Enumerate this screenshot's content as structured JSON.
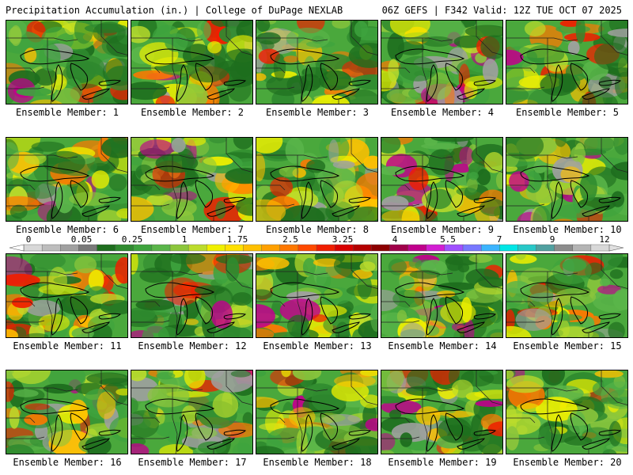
{
  "header": {
    "title_left": "Precipitation Accumulation (in.) | College of DuPage NEXLAB",
    "title_right": "06Z GEFS | F342 Valid: 12Z TUE OCT 07 2025"
  },
  "panels": [
    {
      "label": "Ensemble Member: 1"
    },
    {
      "label": "Ensemble Member: 2"
    },
    {
      "label": "Ensemble Member: 3"
    },
    {
      "label": "Ensemble Member: 4"
    },
    {
      "label": "Ensemble Member: 5"
    },
    {
      "label": "Ensemble Member: 6"
    },
    {
      "label": "Ensemble Member: 7"
    },
    {
      "label": "Ensemble Member: 8"
    },
    {
      "label": "Ensemble Member: 9"
    },
    {
      "label": "Ensemble Member: 10"
    },
    {
      "label": "Ensemble Member: 11"
    },
    {
      "label": "Ensemble Member: 12"
    },
    {
      "label": "Ensemble Member: 13"
    },
    {
      "label": "Ensemble Member: 14"
    },
    {
      "label": "Ensemble Member: 15"
    },
    {
      "label": "Ensemble Member: 16"
    },
    {
      "label": "Ensemble Member: 17"
    },
    {
      "label": "Ensemble Member: 18"
    },
    {
      "label": "Ensemble Member: 19"
    },
    {
      "label": "Ensemble Member: 20"
    }
  ],
  "colorbar": {
    "labels": [
      "0",
      "0.05",
      "0.25",
      "1",
      "1.75",
      "2.5",
      "3.25",
      "4",
      "5.5",
      "7",
      "9",
      "12"
    ],
    "colors": [
      "#d8d8d8",
      "#bdbdbd",
      "#a0a0a0",
      "#7a7a7a",
      "#1e6e1e",
      "#2f8a2f",
      "#3ea33e",
      "#5ab54a",
      "#8cc63c",
      "#bcdc2c",
      "#f0f000",
      "#ffe000",
      "#ffc000",
      "#ffa000",
      "#ff7800",
      "#ff4a00",
      "#f01e00",
      "#d80000",
      "#b40000",
      "#8c0000",
      "#a0004a",
      "#c0008c",
      "#d21ed2",
      "#a050ff",
      "#7878ff",
      "#3cb4ff",
      "#00e6e6",
      "#28c8c8",
      "#50a0a0",
      "#8c8c8c",
      "#b4b4b4",
      "#d8d8d8"
    ]
  }
}
